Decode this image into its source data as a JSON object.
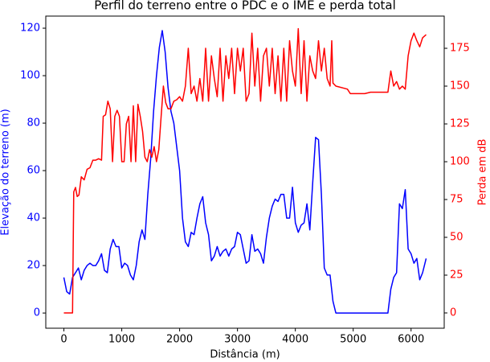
{
  "chart_data": {
    "type": "line",
    "title": "Perfil do terreno entre o PDC e o IME e perda total",
    "xlabel": "Distância (m)",
    "ylabel": "Elevação do terreno (m)",
    "y2label": "Perda em dB",
    "ylabel_color": "#0000ff",
    "y2label_color": "#ff0000",
    "xlim": [
      -313,
      6573
    ],
    "ylim": [
      -6.4,
      125.1
    ],
    "y2lim": [
      -10.1,
      196.3
    ],
    "xticks": [
      0,
      1000,
      2000,
      3000,
      4000,
      5000,
      6000
    ],
    "yticks": [
      0,
      20,
      40,
      60,
      80,
      100,
      120
    ],
    "y2ticks": [
      0,
      25,
      50,
      75,
      100,
      125,
      150,
      175
    ],
    "grid": false,
    "series": [
      {
        "color": "#0000ff",
        "axis": "y",
        "x": [
          0,
          50,
          100,
          150,
          200,
          250,
          300,
          350,
          400,
          450,
          500,
          550,
          600,
          650,
          700,
          750,
          800,
          850,
          900,
          950,
          1000,
          1050,
          1100,
          1150,
          1200,
          1250,
          1300,
          1350,
          1400,
          1450,
          1500,
          1550,
          1600,
          1650,
          1700,
          1750,
          1800,
          1850,
          1900,
          1950,
          2000,
          2050,
          2100,
          2150,
          2200,
          2250,
          2300,
          2350,
          2400,
          2450,
          2500,
          2550,
          2600,
          2650,
          2700,
          2750,
          2800,
          2850,
          2900,
          2950,
          3000,
          3050,
          3100,
          3150,
          3200,
          3250,
          3300,
          3350,
          3400,
          3450,
          3500,
          3550,
          3600,
          3650,
          3700,
          3750,
          3800,
          3850,
          3900,
          3950,
          4000,
          4050,
          4100,
          4150,
          4200,
          4250,
          4300,
          4350,
          4400,
          4450,
          4500,
          4550,
          4600,
          4650,
          4700,
          5600,
          5650,
          5700,
          5750,
          5800,
          5850,
          5900,
          5950,
          6000,
          6050,
          6100,
          6150,
          6200,
          6260
        ],
        "values": [
          15,
          9,
          8,
          15,
          17,
          19,
          14,
          18,
          20,
          21,
          20,
          20,
          22,
          25,
          18,
          17,
          27,
          31,
          28,
          28,
          19,
          21,
          20,
          16,
          14,
          20,
          30,
          35,
          31,
          50,
          65,
          85,
          100,
          112,
          119,
          110,
          95,
          85,
          80,
          70,
          60,
          40,
          30,
          28,
          34,
          33,
          40,
          46,
          49,
          38,
          33,
          22,
          24,
          28,
          24,
          26,
          27,
          24,
          27,
          28,
          34,
          33,
          27,
          21,
          22,
          33,
          26,
          27,
          25,
          21,
          32,
          40,
          45,
          48,
          47,
          50,
          50,
          40,
          40,
          53,
          38,
          34,
          37,
          38,
          46,
          35,
          55,
          74,
          73,
          50,
          19,
          16,
          16,
          5,
          0,
          0,
          10,
          15,
          17,
          46,
          44,
          52,
          27,
          25,
          21,
          23,
          14,
          17,
          23
        ]
      },
      {
        "color": "#ff0000",
        "axis": "y2",
        "x": [
          0,
          150,
          170,
          200,
          230,
          260,
          300,
          350,
          400,
          450,
          500,
          550,
          600,
          650,
          680,
          720,
          760,
          800,
          840,
          880,
          920,
          960,
          1000,
          1040,
          1080,
          1120,
          1160,
          1200,
          1240,
          1280,
          1320,
          1360,
          1400,
          1440,
          1480,
          1520,
          1560,
          1600,
          1640,
          1680,
          1720,
          1760,
          1800,
          1850,
          1900,
          1950,
          2000,
          2050,
          2100,
          2150,
          2200,
          2250,
          2300,
          2350,
          2400,
          2450,
          2500,
          2550,
          2600,
          2650,
          2700,
          2750,
          2800,
          2850,
          2900,
          2950,
          3000,
          3050,
          3100,
          3150,
          3200,
          3250,
          3300,
          3350,
          3400,
          3450,
          3500,
          3550,
          3600,
          3650,
          3700,
          3750,
          3800,
          3850,
          3900,
          3950,
          4000,
          4050,
          4100,
          4150,
          4200,
          4250,
          4300,
          4350,
          4400,
          4450,
          4500,
          4550,
          4600,
          4630,
          4650,
          4700,
          4900,
          4950,
          5000,
          5200,
          5300,
          5600,
          5650,
          5700,
          5750,
          5800,
          5850,
          5900,
          5950,
          6000,
          6050,
          6100,
          6150,
          6200,
          6260
        ],
        "values": [
          0,
          0,
          80,
          83,
          77,
          78,
          90,
          88,
          95,
          96,
          101,
          101,
          102,
          101,
          130,
          131,
          140,
          135,
          100,
          130,
          134,
          130,
          100,
          100,
          125,
          130,
          100,
          137,
          100,
          138,
          130,
          120,
          103,
          100,
          108,
          103,
          110,
          100,
          108,
          130,
          150,
          139,
          135,
          135,
          140,
          141,
          143,
          140,
          150,
          175,
          145,
          150,
          140,
          155,
          140,
          175,
          140,
          170,
          155,
          143,
          175,
          140,
          170,
          155,
          175,
          145,
          175,
          160,
          175,
          140,
          145,
          185,
          150,
          175,
          140,
          170,
          175,
          150,
          175,
          145,
          170,
          140,
          175,
          140,
          180,
          160,
          150,
          188,
          145,
          180,
          140,
          170,
          160,
          155,
          180,
          160,
          175,
          155,
          150,
          180,
          152,
          150,
          148,
          145,
          145,
          145,
          146,
          146,
          160,
          150,
          153,
          148,
          150,
          148,
          170,
          180,
          185,
          180,
          176,
          182,
          184
        ]
      }
    ]
  }
}
